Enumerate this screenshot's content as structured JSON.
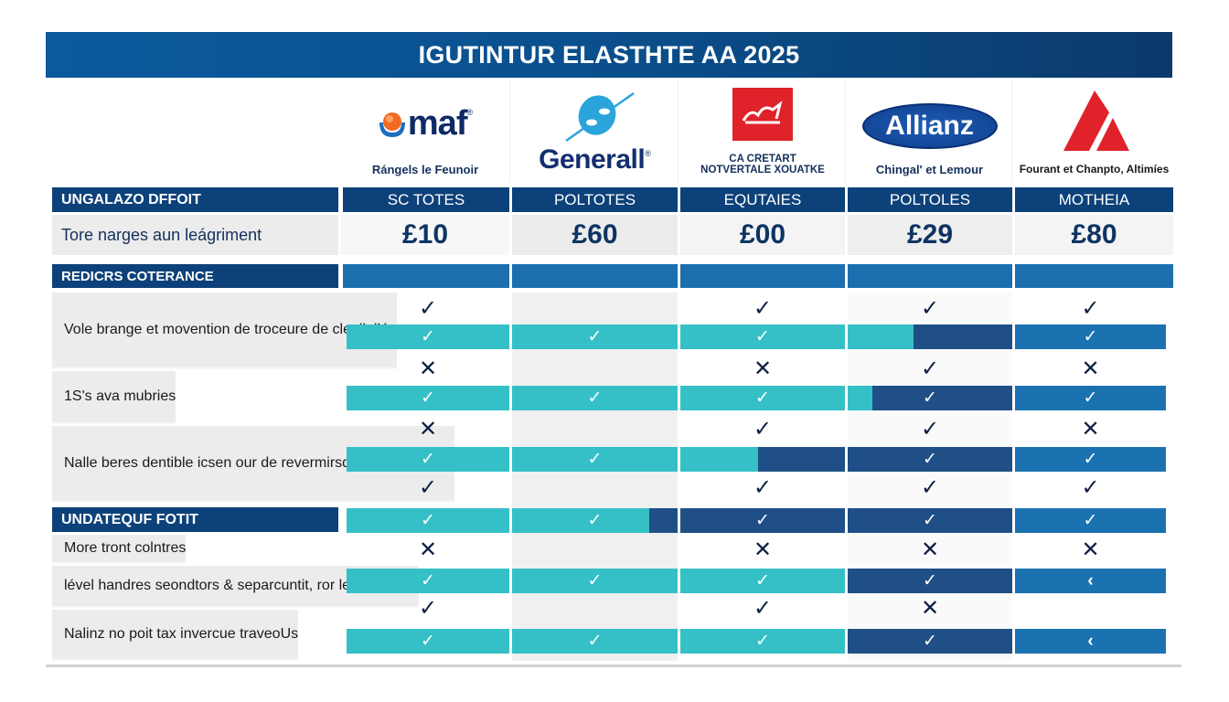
{
  "title": "IGUTINTUR ELASTHTE AA 2025",
  "colors": {
    "header_blue": "#0d4179",
    "section_blue": "#1b6fae",
    "teal": "#35c0c7",
    "navy": "#1f4f86",
    "mid_blue": "#1b72b0",
    "mark_dark": "#0f1f45",
    "red_logo": "#e0222a"
  },
  "providers": [
    {
      "logo_text": "maf",
      "logo_icon": "sphere-logo-icon",
      "caption": "Rángels le Feunoir",
      "column_label": "SC TOTES",
      "price": "£10"
    },
    {
      "logo_text": "Generall",
      "logo_icon": "swoosh-logo-icon",
      "caption": "",
      "column_label": "POLTOTES",
      "price": "£60"
    },
    {
      "logo_text": "",
      "logo_icon": "red-square-logo-icon",
      "caption": "CA CRETART NOTVERTALE XOUATKE",
      "column_label": "EQUTAIES",
      "price": "£00"
    },
    {
      "logo_text": "Allianz",
      "logo_icon": "oval-logo-icon",
      "caption": "Chingal' et Lemour",
      "column_label": "POLTOLES",
      "price": "£29"
    },
    {
      "logo_text": "",
      "logo_icon": "red-triangle-logo-icon",
      "caption": "Fourant et Chanpto, Altimíes",
      "column_label": "MOTHEIA",
      "price": "£80"
    }
  ],
  "left": {
    "header1": "UNGALAZO DFFOIT",
    "price_label": "Tore narges aun leágriment",
    "section1": "REDICRS COTERANCE",
    "section2": "UNDATEQUF FOTIT",
    "feature_labels": [
      "Vole brange et movention de troceure de clenilollée",
      "1S's ava mubries",
      "Nalle beres dentible icsen our de revermirsdanot de pacents",
      "More tront colntres",
      "lével handres seondtors & separcuntit, ror let contemte",
      "Nalinz no poit tax invercue traveoUs"
    ]
  },
  "rows": [
    {
      "type": "plain",
      "marks": [
        "✓",
        "",
        "✓",
        "✓",
        "✓"
      ]
    },
    {
      "type": "bar",
      "marks": [
        "✓",
        "✓",
        "✓",
        "",
        "✓"
      ],
      "fills": [
        "teal",
        "teal",
        "teal",
        "split-teal-navy-40",
        "mid"
      ]
    },
    {
      "type": "plain",
      "marks": [
        "✕",
        "",
        "✕",
        "✓",
        "✕"
      ]
    },
    {
      "type": "bar",
      "marks": [
        "✓",
        "✓",
        "✓",
        "✓",
        "✓"
      ],
      "fills": [
        "teal",
        "teal",
        "teal",
        "split-teal-navy-15",
        "mid"
      ]
    },
    {
      "type": "plain",
      "marks": [
        "✕",
        "",
        "✓",
        "✓",
        "✕"
      ]
    },
    {
      "type": "bar",
      "marks": [
        "✓",
        "✓",
        "",
        "✓",
        "✓"
      ],
      "fills": [
        "teal",
        "teal",
        "split-teal-navy-47",
        "navy",
        "mid"
      ]
    },
    {
      "type": "plain",
      "marks": [
        "✓",
        "",
        "✓",
        "✓",
        "✓"
      ]
    },
    {
      "type": "bar",
      "marks": [
        "✓",
        "✓",
        "✓",
        "✓",
        "✓"
      ],
      "fills": [
        "teal",
        "split-teal-navy-83",
        "navy",
        "navy",
        "mid"
      ]
    },
    {
      "type": "plain",
      "marks": [
        "✕",
        "",
        "✕",
        "✕",
        "✕"
      ]
    },
    {
      "type": "bar",
      "marks": [
        "✓",
        "✓",
        "✓",
        "✓",
        "‹"
      ],
      "fills": [
        "teal",
        "teal",
        "teal",
        "navy",
        "mid"
      ]
    },
    {
      "type": "plain",
      "marks": [
        "✓",
        "",
        "✓",
        "✕",
        ""
      ]
    },
    {
      "type": "bar",
      "marks": [
        "✓",
        "✓",
        "✓",
        "✓",
        "‹"
      ],
      "fills": [
        "teal",
        "teal",
        "teal",
        "navy",
        "mid"
      ]
    }
  ]
}
